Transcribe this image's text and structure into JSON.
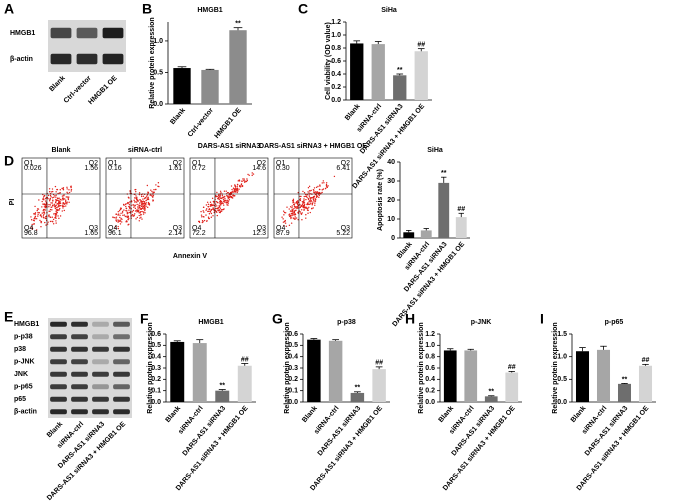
{
  "panel_labels": [
    "A",
    "B",
    "C",
    "D",
    "E",
    "F",
    "G",
    "H",
    "I"
  ],
  "blot_a": {
    "rows": [
      "HMGB1",
      "β-actin"
    ],
    "lanes": [
      "Blank",
      "Ctrl-vector",
      "HMGB1 OE"
    ]
  },
  "flow_d": {
    "y_label": "PI",
    "x_label": "Annexin V",
    "plots": [
      {
        "title": "Blank",
        "quadrants": [
          {
            "name": "Q1",
            "value": "0.026"
          },
          {
            "name": "Q2",
            "value": "1.56"
          },
          {
            "name": "Q3",
            "value": "1.65"
          },
          {
            "name": "Q4",
            "value": "96.8"
          }
        ]
      },
      {
        "title": "siRNA-ctrl",
        "quadrants": [
          {
            "name": "Q1",
            "value": "0.16"
          },
          {
            "name": "Q2",
            "value": "1.61"
          },
          {
            "name": "Q3",
            "value": "2.14"
          },
          {
            "name": "Q4",
            "value": "96.1"
          }
        ]
      },
      {
        "title": "DARS-AS1 siRNA3",
        "quadrants": [
          {
            "name": "Q1",
            "value": "0.72"
          },
          {
            "name": "Q2",
            "value": "14.6"
          },
          {
            "name": "Q3",
            "value": "12.3"
          },
          {
            "name": "Q4",
            "value": "72.2"
          }
        ]
      },
      {
        "title": "DARS-AS1 siRNA3 + HMGB1 OE",
        "quadrants": [
          {
            "name": "Q1",
            "value": "0.30"
          },
          {
            "name": "Q2",
            "value": "6.41"
          },
          {
            "name": "Q3",
            "value": "5.22"
          },
          {
            "name": "Q4",
            "value": "87.9"
          }
        ]
      }
    ]
  },
  "blot_e": {
    "rows": [
      "HMGB1",
      "p-p38",
      "p38",
      "p-JNK",
      "JNK",
      "p-p65",
      "p65",
      "β-actin"
    ],
    "lanes": [
      "Blank",
      "siRNA-ctrl",
      "DARS-AS1 siRNA3",
      "DARS-AS1 siRNA3 + HMGB1 OE"
    ]
  },
  "chart_data": [
    {
      "type": "bar",
      "title": "HMGB1",
      "y_label": "Relative protein expression",
      "categories": [
        "Blank",
        "Ctrl-vector",
        "HMGB1 OE"
      ],
      "values": [
        0.57,
        0.54,
        1.17
      ],
      "errors": [
        0.02,
        0.01,
        0.04
      ],
      "annotations": [
        null,
        null,
        "**"
      ],
      "colors": [
        "#000000",
        "#8c8c8c",
        "#8c8c8c"
      ],
      "ylim": [
        0,
        1.3
      ],
      "yticks": [
        {
          "value": 0,
          "label": "0.0"
        },
        0.5,
        {
          "value": 1,
          "label": "1.0"
        }
      ]
    },
    {
      "type": "bar",
      "title": "SiHa",
      "y_label": "Cell viability (OD value)",
      "categories": [
        "Blank",
        "siRNA-ctrl",
        "DARS-AS1 siRNA3",
        "DARS-AS1 siRNA3 + HMGB1 OE"
      ],
      "values": [
        0.87,
        0.86,
        0.38,
        0.75
      ],
      "errors": [
        0.04,
        0.04,
        0.02,
        0.04
      ],
      "annotations": [
        null,
        null,
        "**",
        "##"
      ],
      "colors": [
        "#000000",
        "#a6a6a6",
        "#6e6e6e",
        "#d4d4d4"
      ],
      "ylim": [
        0,
        1.2
      ],
      "yticks": [
        {
          "value": 0,
          "label": "0.0"
        },
        0.2,
        0.4,
        0.6,
        0.8,
        {
          "value": 1,
          "label": "1.0"
        },
        1.2
      ]
    },
    {
      "type": "bar",
      "title": "SiHa",
      "y_label": "Apoptosis rate (%)",
      "categories": [
        "Blank",
        "siRNA-ctrl",
        "DARS-AS1 siRNA3",
        "DARS-AS1 siRNA3 + HMGB1 OE"
      ],
      "values": [
        3,
        4,
        29,
        11
      ],
      "errors": [
        1,
        1,
        3,
        2
      ],
      "annotations": [
        null,
        null,
        "**",
        "##"
      ],
      "colors": [
        "#000000",
        "#a6a6a6",
        "#6e6e6e",
        "#d4d4d4"
      ],
      "ylim": [
        0,
        40
      ],
      "yticks": [
        0,
        10,
        20,
        30,
        40
      ]
    },
    {
      "type": "bar",
      "title": "HMGB1",
      "y_label": "Relative protein expression",
      "categories": [
        "Blank",
        "siRNA-ctrl",
        "DARS-AS1 siRNA3",
        "DARS-AS1 siRNA3 + HMGB1 OE"
      ],
      "values": [
        0.53,
        0.52,
        0.1,
        0.32
      ],
      "errors": [
        0.01,
        0.03,
        0.01,
        0.02
      ],
      "annotations": [
        null,
        null,
        "**",
        "##"
      ],
      "colors": [
        "#000000",
        "#a6a6a6",
        "#6e6e6e",
        "#d4d4d4"
      ],
      "ylim": [
        0,
        0.6
      ],
      "yticks": [
        {
          "value": 0,
          "label": "0.0"
        },
        0.1,
        0.2,
        0.3,
        0.4,
        0.5,
        0.6
      ]
    },
    {
      "type": "bar",
      "title": "p-p38",
      "y_label": "Relative protein expression",
      "categories": [
        "Blank",
        "siRNA-ctrl",
        "DARS-AS1 siRNA3",
        "DARS-AS1 siRNA3 + HMGB1 OE"
      ],
      "values": [
        0.55,
        0.54,
        0.08,
        0.29
      ],
      "errors": [
        0.01,
        0.01,
        0.01,
        0.02
      ],
      "annotations": [
        null,
        null,
        "**",
        "##"
      ],
      "colors": [
        "#000000",
        "#a6a6a6",
        "#6e6e6e",
        "#d4d4d4"
      ],
      "ylim": [
        0,
        0.6
      ],
      "yticks": [
        {
          "value": 0,
          "label": "0.0"
        },
        0.1,
        0.2,
        0.3,
        0.4,
        0.5,
        0.6
      ]
    },
    {
      "type": "bar",
      "title": "p-JNK",
      "y_label": "Relative protein expression",
      "categories": [
        "Blank",
        "siRNA-ctrl",
        "DARS-AS1 siRNA3",
        "DARS-AS1 siRNA3 + HMGB1 OE"
      ],
      "values": [
        0.91,
        0.91,
        0.1,
        0.52
      ],
      "errors": [
        0.03,
        0.02,
        0.01,
        0.02
      ],
      "annotations": [
        null,
        null,
        "**",
        "##"
      ],
      "colors": [
        "#000000",
        "#a6a6a6",
        "#6e6e6e",
        "#d4d4d4"
      ],
      "ylim": [
        0,
        1.2
      ],
      "yticks": [
        {
          "value": 0,
          "label": "0.0"
        },
        0.2,
        0.4,
        0.6,
        0.8,
        {
          "value": 1,
          "label": "1.0"
        },
        1.2
      ]
    },
    {
      "type": "bar",
      "title": "p-p65",
      "y_label": "Relative protein expression",
      "categories": [
        "Blank",
        "siRNA-ctrl",
        "DARS-AS1 siRNA3",
        "DARS-AS1 siRNA3 + HMGB1 OE"
      ],
      "values": [
        1.12,
        1.15,
        0.4,
        0.8
      ],
      "errors": [
        0.08,
        0.08,
        0.01,
        0.03
      ],
      "annotations": [
        null,
        null,
        "**",
        "##"
      ],
      "colors": [
        "#000000",
        "#a6a6a6",
        "#6e6e6e",
        "#d4d4d4"
      ],
      "ylim": [
        0,
        1.5
      ],
      "yticks": [
        {
          "value": 0,
          "label": "0.0"
        },
        0.5,
        {
          "value": 1,
          "label": "1.0"
        },
        1.5
      ]
    }
  ]
}
